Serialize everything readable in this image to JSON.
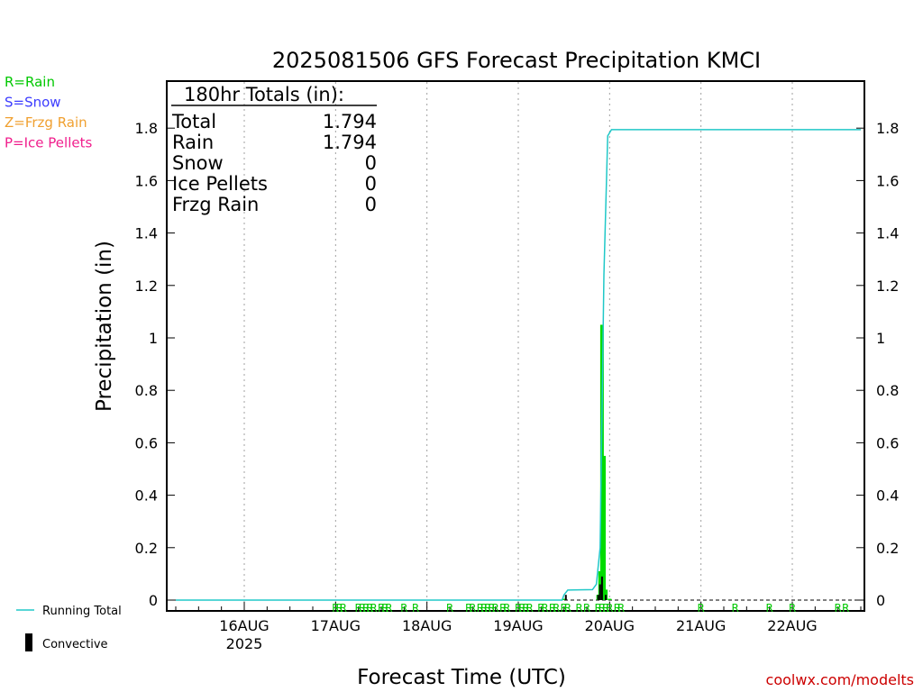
{
  "chart_data": {
    "type": "bar",
    "title": "2025081506 GFS Forecast Precipitation KMCI",
    "xlabel": "Forecast Time (UTC)",
    "ylabel": "Precipitation (in)",
    "ylim": [
      0,
      2.0
    ],
    "yticks": [
      0,
      0.2,
      0.4,
      0.6,
      0.8,
      1,
      1.2,
      1.4,
      1.6,
      1.8
    ],
    "ytick_labels": [
      "0",
      "0.2",
      "0.4",
      "0.6",
      "0.8",
      "1",
      "1.2",
      "1.4",
      "1.6",
      "1.8"
    ],
    "xlim_hours": [
      0,
      180
    ],
    "x_ticks": [
      {
        "hour": 18,
        "label": "16AUG",
        "sublabel": "2025"
      },
      {
        "hour": 42,
        "label": "17AUG",
        "sublabel": ""
      },
      {
        "hour": 66,
        "label": "18AUG",
        "sublabel": ""
      },
      {
        "hour": 90,
        "label": "19AUG",
        "sublabel": ""
      },
      {
        "hour": 114,
        "label": "20AUG",
        "sublabel": ""
      },
      {
        "hour": 138,
        "label": "21AUG",
        "sublabel": ""
      },
      {
        "hour": 162,
        "label": "22AUG",
        "sublabel": ""
      }
    ],
    "grid": "vertical dotted at day boundaries",
    "rain_bars": [
      {
        "hour": 102,
        "value": 0.005
      },
      {
        "hour": 111,
        "value": 0.02
      },
      {
        "hour": 111.5,
        "value": 0.11
      },
      {
        "hour": 112,
        "value": 1.05
      },
      {
        "hour": 112.5,
        "value": 0.55
      },
      {
        "hour": 113,
        "value": 0.04
      },
      {
        "hour": 114,
        "value": 0.005
      }
    ],
    "convective_bars": [
      {
        "hour": 102.5,
        "value": 0.02
      },
      {
        "hour": 111,
        "value": 0.02
      },
      {
        "hour": 111.5,
        "value": 0.06
      },
      {
        "hour": 112,
        "value": 0.09
      },
      {
        "hour": 113,
        "value": 0.02
      }
    ],
    "running_total": [
      {
        "hour": 0,
        "value": 0
      },
      {
        "hour": 101.5,
        "value": 0
      },
      {
        "hour": 102,
        "value": 0.02
      },
      {
        "hour": 103,
        "value": 0.038
      },
      {
        "hour": 109.5,
        "value": 0.04
      },
      {
        "hour": 110.5,
        "value": 0.06
      },
      {
        "hour": 111.5,
        "value": 0.2
      },
      {
        "hour": 112.5,
        "value": 1.24
      },
      {
        "hour": 113.5,
        "value": 1.77
      },
      {
        "hour": 114.5,
        "value": 1.794
      },
      {
        "hour": 180,
        "value": 1.794
      }
    ],
    "precip_type_markers": [
      {
        "hour": 42,
        "label": "R"
      },
      {
        "hour": 43,
        "label": "R"
      },
      {
        "hour": 44,
        "label": "R"
      },
      {
        "hour": 48,
        "label": "R"
      },
      {
        "hour": 49,
        "label": "R"
      },
      {
        "hour": 50,
        "label": "R"
      },
      {
        "hour": 51,
        "label": "R"
      },
      {
        "hour": 52,
        "label": "R"
      },
      {
        "hour": 54,
        "label": "R"
      },
      {
        "hour": 55,
        "label": "R"
      },
      {
        "hour": 56,
        "label": "R"
      },
      {
        "hour": 60,
        "label": "R"
      },
      {
        "hour": 63,
        "label": "R"
      },
      {
        "hour": 72,
        "label": "R"
      },
      {
        "hour": 77,
        "label": "R"
      },
      {
        "hour": 78,
        "label": "R"
      },
      {
        "hour": 80,
        "label": "R"
      },
      {
        "hour": 81,
        "label": "R"
      },
      {
        "hour": 82,
        "label": "R"
      },
      {
        "hour": 83,
        "label": "R"
      },
      {
        "hour": 84,
        "label": "R"
      },
      {
        "hour": 86,
        "label": "R"
      },
      {
        "hour": 87,
        "label": "R"
      },
      {
        "hour": 90,
        "label": "R"
      },
      {
        "hour": 91,
        "label": "R"
      },
      {
        "hour": 92,
        "label": "R"
      },
      {
        "hour": 93,
        "label": "R"
      },
      {
        "hour": 96,
        "label": "R"
      },
      {
        "hour": 97,
        "label": "R"
      },
      {
        "hour": 99,
        "label": "R"
      },
      {
        "hour": 100,
        "label": "R"
      },
      {
        "hour": 102,
        "label": "R"
      },
      {
        "hour": 103,
        "label": "R"
      },
      {
        "hour": 106,
        "label": "R"
      },
      {
        "hour": 108,
        "label": "R"
      },
      {
        "hour": 111,
        "label": "R"
      },
      {
        "hour": 112,
        "label": "R"
      },
      {
        "hour": 113,
        "label": "R"
      },
      {
        "hour": 114,
        "label": "R"
      },
      {
        "hour": 116,
        "label": "R"
      },
      {
        "hour": 117,
        "label": "R"
      },
      {
        "hour": 138,
        "label": "R"
      },
      {
        "hour": 147,
        "label": "R"
      },
      {
        "hour": 156,
        "label": "R"
      },
      {
        "hour": 162,
        "label": "R"
      },
      {
        "hour": 174,
        "label": "R"
      },
      {
        "hour": 176,
        "label": "R"
      }
    ],
    "totals_box": {
      "header": "180hr Totals (in):",
      "rows": [
        {
          "label": "Total",
          "value": "1.794"
        },
        {
          "label": "Rain",
          "value": "1.794"
        },
        {
          "label": "Snow",
          "value": "0"
        },
        {
          "label": "Ice Pellets",
          "value": "0"
        },
        {
          "label": "Frzg Rain",
          "value": "0"
        }
      ]
    },
    "type_legend": [
      {
        "text": "R=Rain",
        "color": "#00c800"
      },
      {
        "text": "S=Snow",
        "color": "#3c3cff"
      },
      {
        "text": "Z=Frzg Rain",
        "color": "#f0a030"
      },
      {
        "text": "P=Ice Pellets",
        "color": "#f01e8c"
      }
    ],
    "series_legend": {
      "running_total": "Running Total",
      "convective": "Convective"
    },
    "colors": {
      "rain": "#00dc00",
      "convective": "#000000",
      "running_total": "#20c8c8",
      "grid": "#a0a0a0"
    },
    "credit": "coolwx.com/modelts"
  }
}
